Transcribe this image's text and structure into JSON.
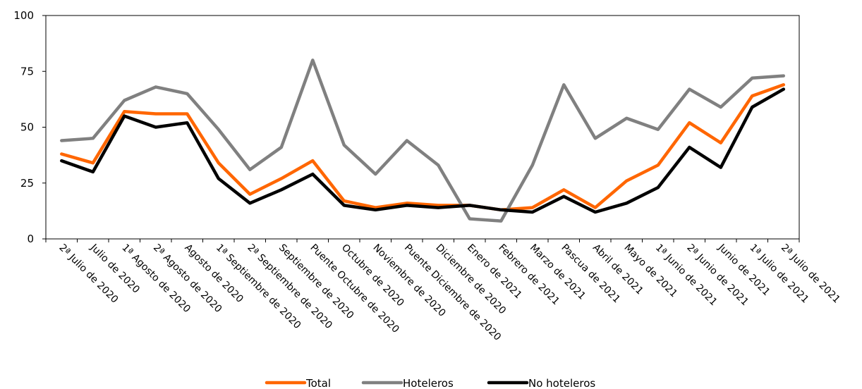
{
  "chart_data": {
    "type": "line",
    "title": "",
    "xlabel": "",
    "ylabel": "",
    "ylim": [
      0,
      100
    ],
    "yticks": [
      0,
      25,
      50,
      75,
      100
    ],
    "grid": false,
    "legend_position": "bottom",
    "categories": [
      "2ª Julio de 2020",
      "Julio de 2020",
      "1ª Agosto de 2020",
      "2ª Agosto de 2020",
      "Agosto de 2020",
      "1ª Septiembre de 2020",
      "2ª Septiembre de 2020",
      "Septiembre de 2020",
      "Puente Octubre de 2020",
      "Octubre de 2020",
      "Noviembre de 2020",
      "Puente Diciembre de 2020",
      "Diciembre de 2020",
      "Enero de 2021",
      "Febrero de 2021",
      "Marzo de 2021",
      "Pascua de 2021",
      "Abril de 2021",
      "Mayo de 2021",
      "1ª Junio de 2021",
      "2ª Junio de 2021",
      "Junio de 2021",
      "1ª Julio de 2021",
      "2ª Julio de 2021"
    ],
    "series": [
      {
        "name": "Total",
        "color": "#ff6600",
        "values": [
          38,
          34,
          57,
          56,
          56,
          34,
          20,
          27,
          35,
          17,
          14,
          16,
          15,
          15,
          13,
          14,
          22,
          14,
          26,
          33,
          52,
          43,
          64,
          69
        ]
      },
      {
        "name": "Hoteleros",
        "color": "#808080",
        "values": [
          44,
          45,
          62,
          68,
          65,
          49,
          31,
          41,
          80,
          42,
          29,
          44,
          33,
          9,
          8,
          33,
          69,
          45,
          54,
          49,
          67,
          59,
          72,
          73
        ]
      },
      {
        "name": "No hoteleros",
        "color": "#000000",
        "values": [
          35,
          30,
          55,
          50,
          52,
          27,
          16,
          22,
          29,
          15,
          13,
          15,
          14,
          15,
          13,
          12,
          19,
          12,
          16,
          23,
          41,
          32,
          59,
          67
        ]
      }
    ]
  }
}
